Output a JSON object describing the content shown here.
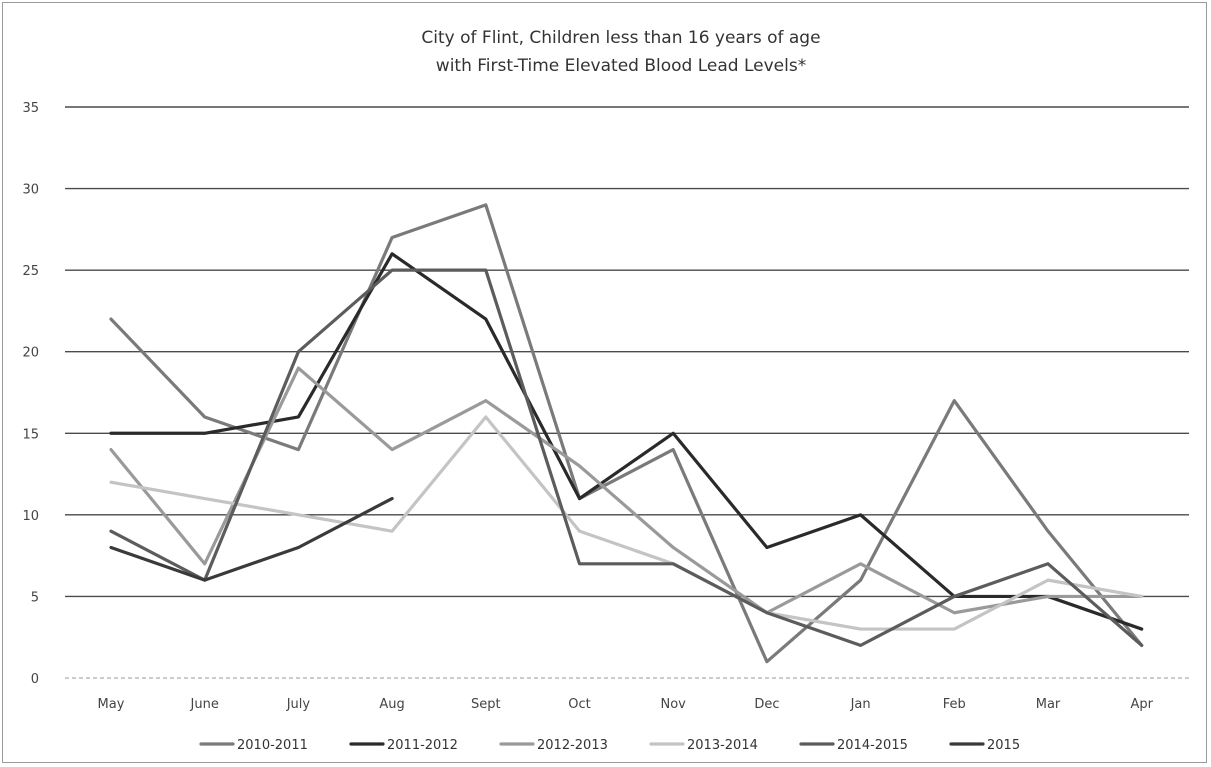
{
  "chart_data": {
    "type": "line",
    "title": "City of Flint, Children less than 16 years of age",
    "subtitle": "with First-Time Elevated Blood Lead Levels*",
    "xlabel": "",
    "ylabel": "",
    "categories": [
      "May",
      "June",
      "July",
      "Aug",
      "Sept",
      "Oct",
      "Nov",
      "Dec",
      "Jan",
      "Feb",
      "Mar",
      "Apr"
    ],
    "ylim": [
      0,
      35
    ],
    "yticks": [
      0,
      5,
      10,
      15,
      20,
      25,
      30,
      35
    ],
    "grid": true,
    "legend_position": "bottom",
    "series": [
      {
        "name": "2010-2011",
        "color": "#7a7a7a",
        "values": [
          22,
          16,
          14,
          27,
          29,
          11,
          14,
          1,
          6,
          17,
          9,
          2
        ]
      },
      {
        "name": "2011-2012",
        "color": "#2a2a2a",
        "values": [
          15,
          15,
          16,
          26,
          22,
          11,
          15,
          8,
          10,
          5,
          5,
          3
        ]
      },
      {
        "name": "2012-2013",
        "color": "#9a9a9a",
        "values": [
          14,
          7,
          19,
          14,
          17,
          13,
          8,
          4,
          7,
          4,
          5,
          5
        ]
      },
      {
        "name": "2013-2014",
        "color": "#c4c4c4",
        "values": [
          12,
          11,
          10,
          9,
          16,
          9,
          7,
          4,
          3,
          3,
          6,
          5
        ]
      },
      {
        "name": "2014-2015",
        "color": "#5c5c5c",
        "values": [
          9,
          6,
          20,
          25,
          25,
          7,
          7,
          4,
          2,
          5,
          7,
          2
        ]
      },
      {
        "name": "2015",
        "color": "#3a3a3a",
        "values": [
          8,
          6,
          8,
          11,
          null,
          null,
          null,
          null,
          null,
          null,
          null,
          null
        ]
      }
    ]
  }
}
